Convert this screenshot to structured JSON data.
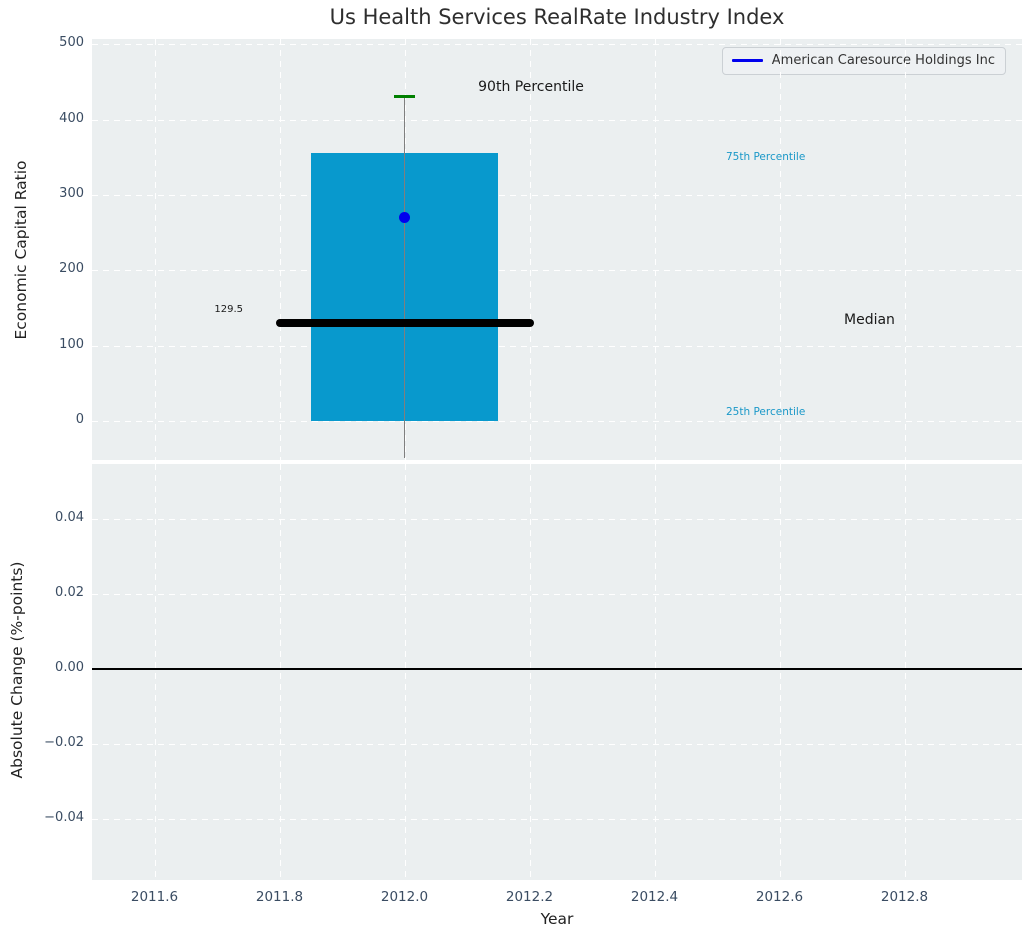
{
  "figure": {
    "title": "Us Health Services RealRate Industry Index",
    "legend": {
      "label": "American Caresource Holdings Inc",
      "line_color": "#0000ee"
    }
  },
  "colors": {
    "axes_background": "#ebeff0",
    "grid": "#ffffff",
    "tick_label": "#3a4c62",
    "bar": "#0899cd",
    "median_line": "#000000",
    "p90_cap": "#008000",
    "whisker": "#7f7f7f",
    "company_point": "#0000ee",
    "percentile_text": "#1a98c8"
  },
  "chart_data": [
    {
      "type": "box",
      "subplot": "top",
      "title": "Us Health Services RealRate Industry Index",
      "ylabel": "Economic Capital Ratio",
      "xlim": [
        2011.5,
        2012.988
      ],
      "ylim": [
        -52,
        507
      ],
      "yticks": [
        0,
        100,
        200,
        300,
        400,
        500
      ],
      "grid": "white dashed",
      "x": 2012.0,
      "box": {
        "bar_bottom": 0,
        "bar_top": 355,
        "bar_x_range": [
          2011.85,
          2012.15
        ],
        "median": 129.5,
        "median_x_range": [
          2011.8,
          2012.2
        ],
        "p25": 0,
        "p75": 355,
        "p90": 430,
        "whisker_bottom": -50,
        "bar_color": "#0899cd",
        "median_color": "#000000",
        "p90_cap_color": "#008000",
        "whisker_color": "#7f7f7f"
      },
      "company_point": {
        "label": "American Caresource Holdings Inc",
        "x": 2012.0,
        "y": 270,
        "color": "#0000ee"
      },
      "annotations": {
        "p90": {
          "text": "90th Percentile",
          "color": "#1a1a1a"
        },
        "p75": {
          "text": "75th Percentile",
          "color": "#1a98c8"
        },
        "median": {
          "text": "Median",
          "color": "#1a1a1a"
        },
        "p25": {
          "text": "25th Percentile",
          "color": "#1a98c8"
        },
        "median_value": {
          "text": "129.5",
          "color": "#1a1a1a"
        }
      },
      "legend": {
        "position": "upper right",
        "entries": [
          {
            "label": "American Caresource Holdings Inc",
            "color": "#0000ee"
          }
        ]
      }
    },
    {
      "type": "line",
      "subplot": "bottom",
      "ylabel": "Absolute Change (%-points)",
      "xlabel": "Year",
      "xlim": [
        2011.5,
        2012.988
      ],
      "ylim": [
        -0.0563,
        0.0547
      ],
      "yticks": [
        0.04,
        0.02,
        0,
        -0.02,
        -0.04
      ],
      "ytick_labels": [
        "0.04",
        "0.02",
        "0.00",
        "−0.02",
        "−0.04"
      ],
      "xticks": [
        2011.6,
        2011.8,
        2012.0,
        2012.2,
        2012.4,
        2012.6,
        2012.8
      ],
      "xtick_labels": [
        "2011.6",
        "2011.8",
        "2012.0",
        "2012.2",
        "2012.4",
        "2012.6",
        "2012.8"
      ],
      "zero_line": 0.0,
      "grid": "white dashed",
      "series": []
    }
  ]
}
